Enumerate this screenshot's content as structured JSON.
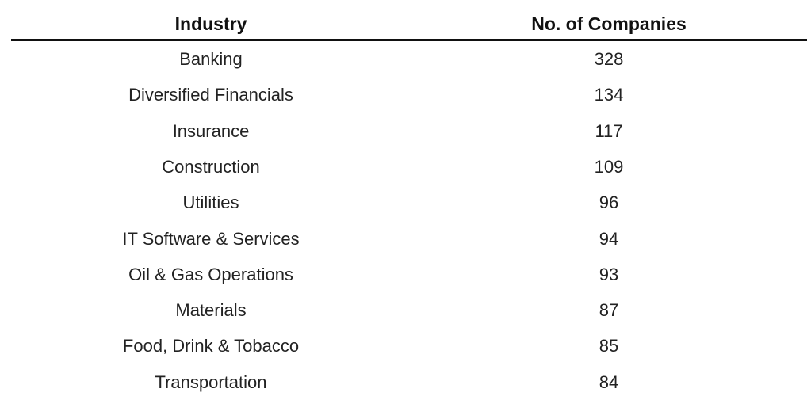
{
  "chart_data": {
    "type": "table",
    "columns": [
      "Industry",
      "No. of Companies"
    ],
    "rows": [
      {
        "industry": "Banking",
        "count": "328"
      },
      {
        "industry": "Diversified Financials",
        "count": "134"
      },
      {
        "industry": "Insurance",
        "count": "117"
      },
      {
        "industry": "Construction",
        "count": "109"
      },
      {
        "industry": "Utilities",
        "count": "96"
      },
      {
        "industry": "IT Software & Services",
        "count": "94"
      },
      {
        "industry": "Oil & Gas Operations",
        "count": "93"
      },
      {
        "industry": "Materials",
        "count": "87"
      },
      {
        "industry": "Food, Drink & Tobacco",
        "count": "85"
      },
      {
        "industry": "Transportation",
        "count": "84"
      }
    ]
  }
}
